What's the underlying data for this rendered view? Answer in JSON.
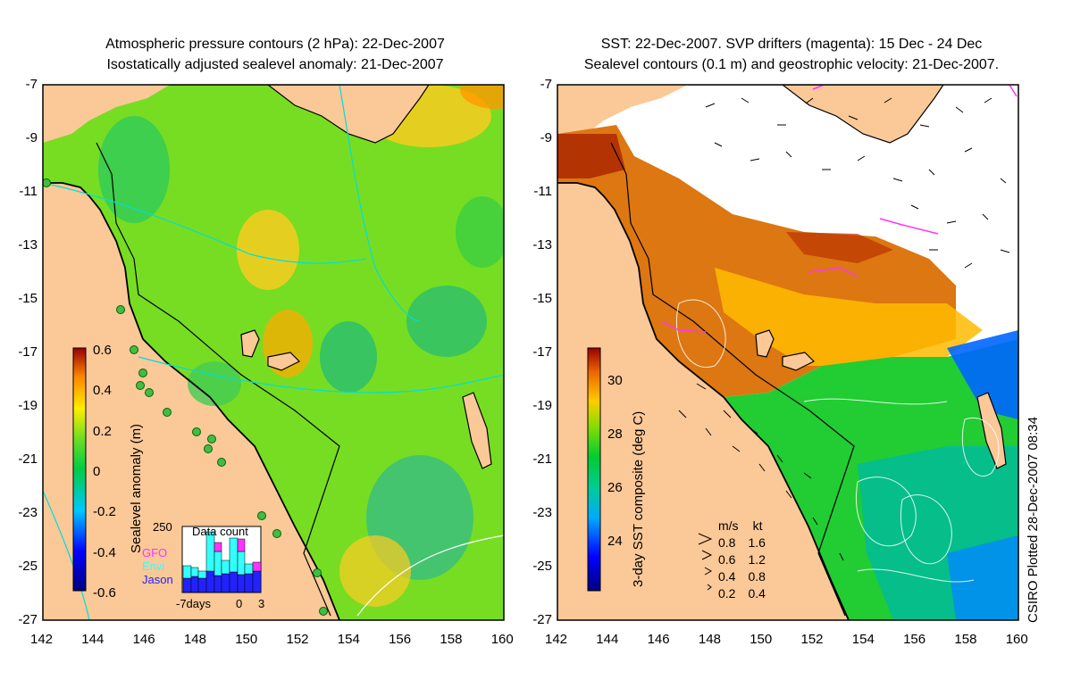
{
  "left_panel": {
    "title_line1": "Atmospheric pressure contours (2 hPa): 22-Dec-2007",
    "title_line2": "Isostatically adjusted sealevel anomaly: 21-Dec-2007",
    "y_ticks": [
      "-7",
      "-9",
      "-11",
      "-13",
      "-15",
      "-17",
      "-19",
      "-21",
      "-23",
      "-25",
      "-27"
    ],
    "x_ticks": [
      "142",
      "144",
      "146",
      "148",
      "150",
      "152",
      "154",
      "156",
      "158",
      "160"
    ],
    "colorbar": {
      "label": "Sealevel anomaly (m)",
      "ticks": [
        "0.6",
        "0.4",
        "0.2",
        "0",
        "-0.2",
        "-0.4",
        "-0.6"
      ]
    },
    "inset": {
      "title": "Data count",
      "y_max_label": "250",
      "x_labels": [
        "-7days",
        "0",
        "3"
      ],
      "legend": [
        {
          "name": "GFO",
          "color": "#ff33ff"
        },
        {
          "name": "Envi",
          "color": "#33ffff"
        },
        {
          "name": "Jason",
          "color": "#2222ff"
        }
      ]
    }
  },
  "right_panel": {
    "title_line1": "SST: 22-Dec-2007. SVP drifters (magenta): 15 Dec - 24 Dec",
    "title_line2": "Sealevel contours (0.1 m) and geostrophic velocity: 21-Dec-2007.",
    "y_ticks": [
      "-7",
      "-9",
      "-11",
      "-13",
      "-15",
      "-17",
      "-19",
      "-21",
      "-23",
      "-25",
      "-27"
    ],
    "x_ticks": [
      "142",
      "144",
      "146",
      "148",
      "150",
      "152",
      "154",
      "156",
      "158",
      "160"
    ],
    "colorbar": {
      "label": "3-day SST composite (deg C)",
      "ticks": [
        "30",
        "28",
        "26",
        "24"
      ]
    },
    "velocity_legend": {
      "header_ms": "m/s",
      "header_kt": "kt",
      "rows": [
        {
          "ms": "0.8",
          "kt": "1.6"
        },
        {
          "ms": "0.6",
          "kt": "1.2"
        },
        {
          "ms": "0.4",
          "kt": "0.8"
        },
        {
          "ms": "0.2",
          "kt": "0.4"
        }
      ]
    }
  },
  "credit": "CSIRO Plotted 28-Dec-2007 08:34"
}
